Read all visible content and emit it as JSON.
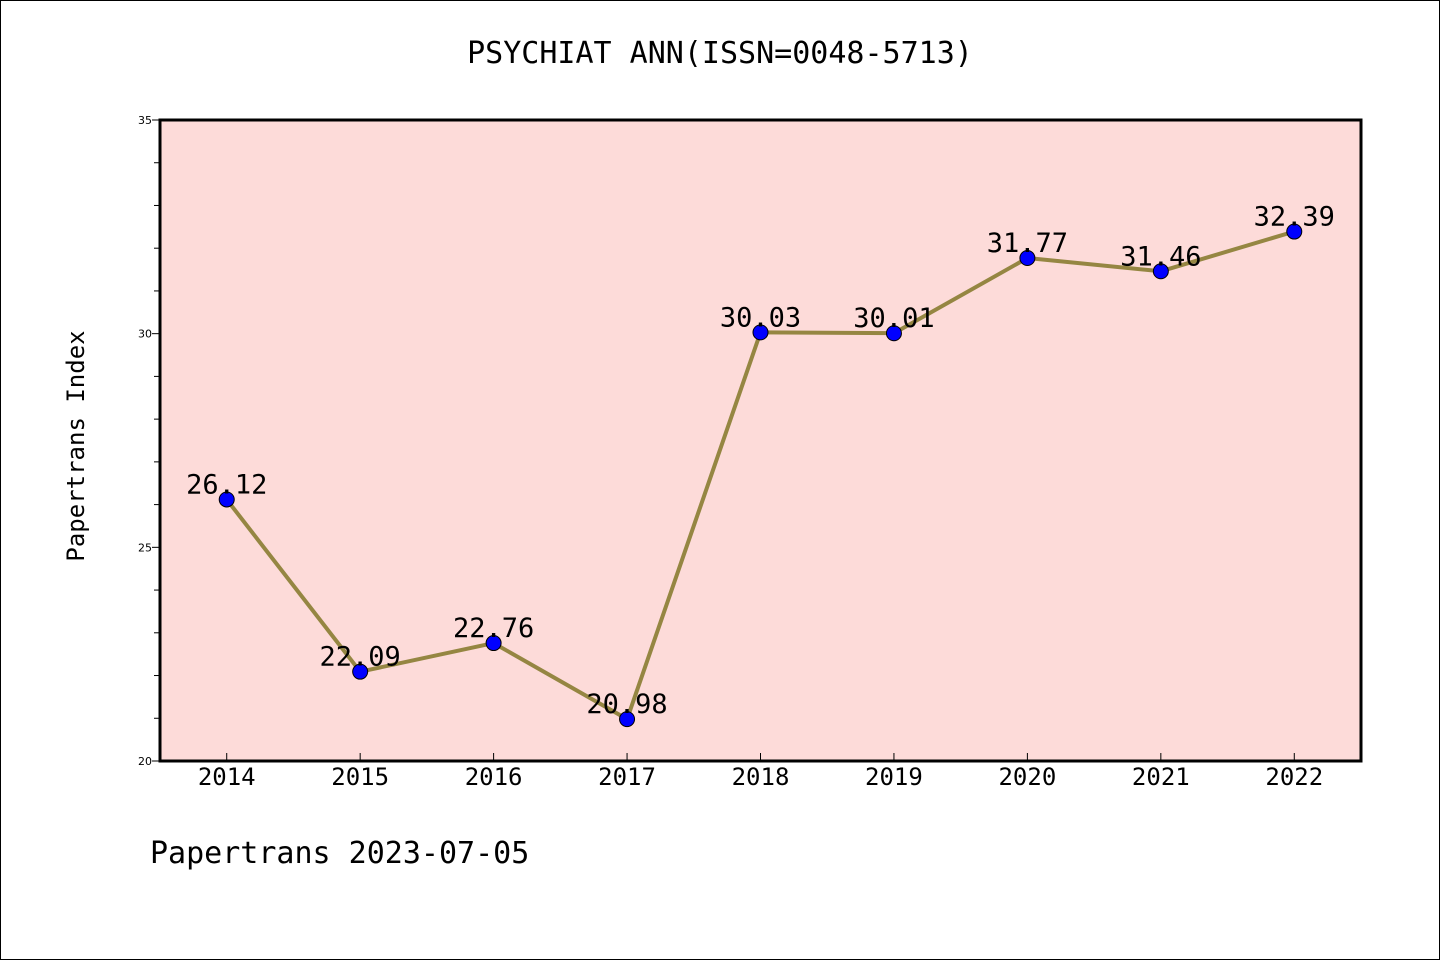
{
  "chart_data": {
    "type": "line",
    "title": "PSYCHIAT ANN(ISSN=0048-5713)",
    "xlabel": "",
    "ylabel": "Papertrans Index",
    "categories": [
      "2014",
      "2015",
      "2016",
      "2017",
      "2018",
      "2019",
      "2020",
      "2021",
      "2022"
    ],
    "values": [
      26.12,
      22.09,
      22.76,
      20.98,
      30.03,
      30.01,
      31.77,
      31.46,
      32.39
    ],
    "data_labels": [
      "26.12",
      "22.09",
      "22.76",
      "20.98",
      "30.03",
      "30.01",
      "31.77",
      "31.46",
      "32.39"
    ],
    "ylim": [
      20,
      35
    ],
    "yticks": [
      "20",
      "25",
      "30",
      "35"
    ],
    "grid": false,
    "colors": {
      "plot_background": "#fddbd9",
      "line": "#958642",
      "marker": "#0000ff",
      "axis": "#000000"
    }
  },
  "footer": "Papertrans 2023-07-05"
}
